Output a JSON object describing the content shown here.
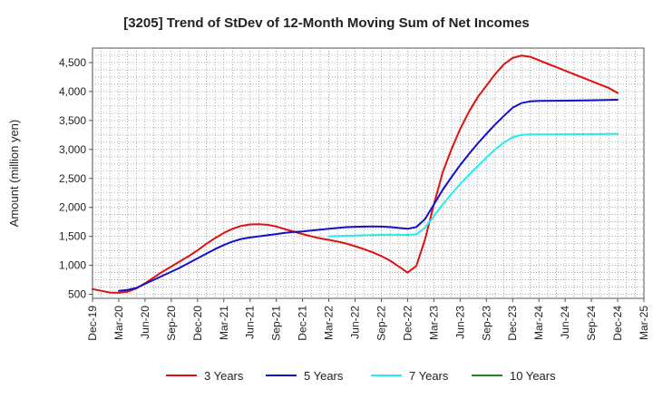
{
  "chart_data": {
    "type": "line",
    "title": "[3205]  Trend of StDev of 12-Month Moving Sum of Net Incomes",
    "ylabel": "Amount (million yen)",
    "xlabel": "",
    "ylim": [
      430,
      4750
    ],
    "yticks": [
      500,
      1000,
      1500,
      2000,
      2500,
      3000,
      3500,
      4000,
      4500
    ],
    "ytick_labels": [
      "500",
      "1,000",
      "1,500",
      "2,000",
      "2,500",
      "3,000",
      "3,500",
      "4,000",
      "4,500"
    ],
    "x_start": "2019-12",
    "x_end": "2025-03",
    "xtick_labels": [
      "Dec-19",
      "Mar-20",
      "Jun-20",
      "Sep-20",
      "Dec-20",
      "Mar-21",
      "Jun-21",
      "Sep-21",
      "Dec-21",
      "Mar-22",
      "Jun-22",
      "Sep-22",
      "Dec-22",
      "Mar-23",
      "Jun-23",
      "Sep-23",
      "Dec-23",
      "Mar-24",
      "Jun-24",
      "Sep-24",
      "Dec-24",
      "Mar-25"
    ],
    "grid": true,
    "legend_placement": "bottom",
    "series": [
      {
        "name": "3 Years",
        "color": "#dd1111",
        "points": [
          [
            "2019-12",
            590
          ],
          [
            "2020-01",
            560
          ],
          [
            "2020-02",
            530
          ],
          [
            "2020-03",
            525
          ],
          [
            "2020-04",
            545
          ],
          [
            "2020-05",
            600
          ],
          [
            "2020-06",
            690
          ],
          [
            "2020-07",
            790
          ],
          [
            "2020-08",
            890
          ],
          [
            "2020-09",
            980
          ],
          [
            "2020-10",
            1070
          ],
          [
            "2020-11",
            1160
          ],
          [
            "2020-12",
            1260
          ],
          [
            "2021-01",
            1370
          ],
          [
            "2021-02",
            1470
          ],
          [
            "2021-03",
            1560
          ],
          [
            "2021-04",
            1630
          ],
          [
            "2021-05",
            1680
          ],
          [
            "2021-06",
            1705
          ],
          [
            "2021-07",
            1710
          ],
          [
            "2021-08",
            1700
          ],
          [
            "2021-09",
            1670
          ],
          [
            "2021-10",
            1625
          ],
          [
            "2021-11",
            1580
          ],
          [
            "2021-12",
            1540
          ],
          [
            "2022-01",
            1500
          ],
          [
            "2022-02",
            1465
          ],
          [
            "2022-03",
            1440
          ],
          [
            "2022-04",
            1410
          ],
          [
            "2022-05",
            1375
          ],
          [
            "2022-06",
            1330
          ],
          [
            "2022-07",
            1280
          ],
          [
            "2022-08",
            1225
          ],
          [
            "2022-09",
            1160
          ],
          [
            "2022-10",
            1080
          ],
          [
            "2022-11",
            980
          ],
          [
            "2022-12",
            875
          ],
          [
            "2023-01",
            990
          ],
          [
            "2023-02",
            1450
          ],
          [
            "2023-03",
            2050
          ],
          [
            "2023-04",
            2600
          ],
          [
            "2023-05",
            3000
          ],
          [
            "2023-06",
            3350
          ],
          [
            "2023-07",
            3650
          ],
          [
            "2023-08",
            3900
          ],
          [
            "2023-09",
            4100
          ],
          [
            "2023-10",
            4300
          ],
          [
            "2023-11",
            4470
          ],
          [
            "2023-12",
            4580
          ],
          [
            "2024-01",
            4620
          ],
          [
            "2024-02",
            4600
          ],
          [
            "2024-03",
            4540
          ],
          [
            "2024-04",
            4480
          ],
          [
            "2024-05",
            4420
          ],
          [
            "2024-06",
            4360
          ],
          [
            "2024-07",
            4300
          ],
          [
            "2024-08",
            4240
          ],
          [
            "2024-09",
            4180
          ],
          [
            "2024-10",
            4120
          ],
          [
            "2024-11",
            4060
          ],
          [
            "2024-12",
            3975
          ]
        ]
      },
      {
        "name": "5 Years",
        "color": "#1111cc",
        "points": [
          [
            "2020-03",
            560
          ],
          [
            "2020-04",
            575
          ],
          [
            "2020-05",
            610
          ],
          [
            "2020-06",
            680
          ],
          [
            "2020-07",
            750
          ],
          [
            "2020-08",
            820
          ],
          [
            "2020-09",
            890
          ],
          [
            "2020-10",
            960
          ],
          [
            "2020-11",
            1040
          ],
          [
            "2020-12",
            1120
          ],
          [
            "2021-01",
            1200
          ],
          [
            "2021-02",
            1280
          ],
          [
            "2021-03",
            1350
          ],
          [
            "2021-04",
            1410
          ],
          [
            "2021-05",
            1455
          ],
          [
            "2021-06",
            1480
          ],
          [
            "2021-07",
            1500
          ],
          [
            "2021-08",
            1520
          ],
          [
            "2021-09",
            1540
          ],
          [
            "2021-10",
            1560
          ],
          [
            "2021-11",
            1575
          ],
          [
            "2021-12",
            1585
          ],
          [
            "2022-01",
            1600
          ],
          [
            "2022-02",
            1615
          ],
          [
            "2022-03",
            1630
          ],
          [
            "2022-04",
            1645
          ],
          [
            "2022-05",
            1658
          ],
          [
            "2022-06",
            1665
          ],
          [
            "2022-07",
            1668
          ],
          [
            "2022-08",
            1670
          ],
          [
            "2022-09",
            1668
          ],
          [
            "2022-10",
            1660
          ],
          [
            "2022-11",
            1645
          ],
          [
            "2022-12",
            1630
          ],
          [
            "2023-01",
            1660
          ],
          [
            "2023-02",
            1800
          ],
          [
            "2023-03",
            2050
          ],
          [
            "2023-04",
            2300
          ],
          [
            "2023-05",
            2520
          ],
          [
            "2023-06",
            2730
          ],
          [
            "2023-07",
            2920
          ],
          [
            "2023-08",
            3100
          ],
          [
            "2023-09",
            3270
          ],
          [
            "2023-10",
            3430
          ],
          [
            "2023-11",
            3580
          ],
          [
            "2023-12",
            3720
          ],
          [
            "2024-01",
            3800
          ],
          [
            "2024-02",
            3830
          ],
          [
            "2024-03",
            3838
          ],
          [
            "2024-06",
            3842
          ],
          [
            "2024-09",
            3848
          ],
          [
            "2024-12",
            3858
          ]
        ]
      },
      {
        "name": "7 Years",
        "color": "#22eeee",
        "points": [
          [
            "2022-03",
            1500
          ],
          [
            "2022-04",
            1505
          ],
          [
            "2022-05",
            1510
          ],
          [
            "2022-06",
            1515
          ],
          [
            "2022-07",
            1520
          ],
          [
            "2022-08",
            1522
          ],
          [
            "2022-09",
            1525
          ],
          [
            "2022-10",
            1527
          ],
          [
            "2022-11",
            1528
          ],
          [
            "2022-12",
            1525
          ],
          [
            "2023-01",
            1535
          ],
          [
            "2023-02",
            1650
          ],
          [
            "2023-03",
            1850
          ],
          [
            "2023-04",
            2050
          ],
          [
            "2023-05",
            2230
          ],
          [
            "2023-06",
            2400
          ],
          [
            "2023-07",
            2560
          ],
          [
            "2023-08",
            2710
          ],
          [
            "2023-09",
            2860
          ],
          [
            "2023-10",
            3000
          ],
          [
            "2023-11",
            3120
          ],
          [
            "2023-12",
            3210
          ],
          [
            "2024-01",
            3250
          ],
          [
            "2024-02",
            3258
          ],
          [
            "2024-03",
            3260
          ],
          [
            "2024-06",
            3262
          ],
          [
            "2024-09",
            3265
          ],
          [
            "2024-12",
            3270
          ]
        ]
      },
      {
        "name": "10 Years",
        "color": "#228822",
        "points": []
      }
    ]
  }
}
